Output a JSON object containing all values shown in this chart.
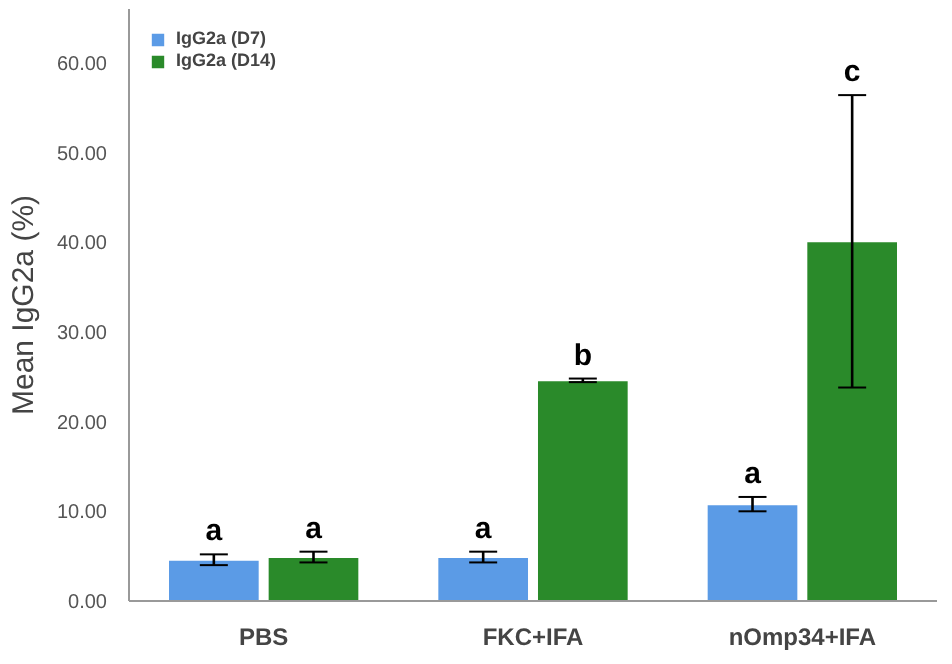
{
  "chart_data": {
    "type": "bar",
    "ylabel": "Mean IgG2a (%)",
    "categories": [
      "PBS",
      "FKC+IFA",
      "nOmp34+IFA"
    ],
    "series": [
      {
        "name": "IgG2a (D7)",
        "color": "#5b9be6",
        "values": [
          4.6,
          4.9,
          10.8
        ],
        "errors": [
          0.6,
          0.6,
          0.8
        ]
      },
      {
        "name": "IgG2a (D14)",
        "color": "#2a8a2a",
        "values": [
          4.9,
          24.6,
          40.1
        ],
        "errors": [
          0.6,
          0.2,
          16.3
        ]
      }
    ],
    "ylim": [
      0,
      66
    ],
    "yticks": [
      {
        "value": 0,
        "label": "0.00"
      },
      {
        "value": 10,
        "label": "10.00"
      },
      {
        "value": 20,
        "label": "20.00"
      },
      {
        "value": 30,
        "label": "30.00"
      },
      {
        "value": 40,
        "label": "40.00"
      },
      {
        "value": 50,
        "label": "50.00"
      },
      {
        "value": 60,
        "label": "60.00"
      }
    ],
    "annotations": [
      "a",
      "a",
      "a",
      "b",
      "a",
      "c"
    ],
    "grid": false,
    "legend": "top left"
  }
}
